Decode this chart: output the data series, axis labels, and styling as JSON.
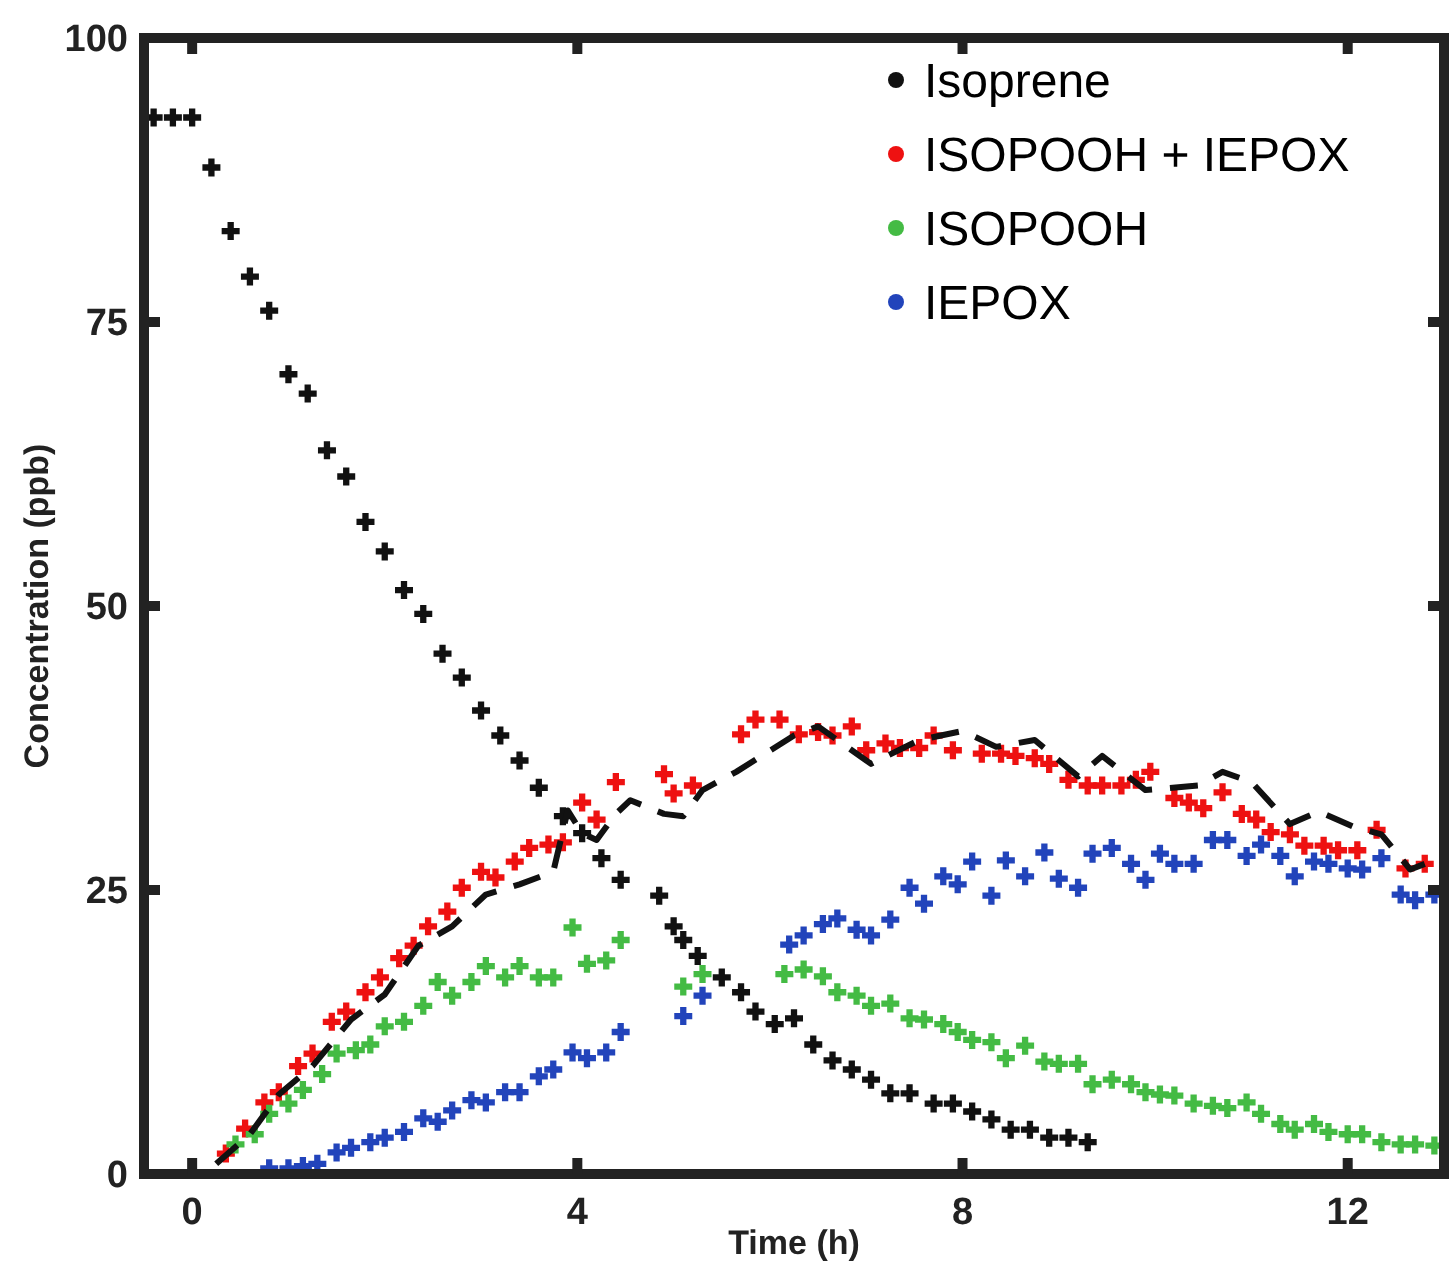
{
  "chart_data": {
    "type": "scatter",
    "xlabel": "Time (h)",
    "ylabel": "Concentration (ppb)",
    "xlim": [
      -0.5,
      13
    ],
    "xticks": [
      0,
      4,
      8,
      12
    ],
    "ylim": [
      0,
      100
    ],
    "yticks": [
      0,
      25,
      50,
      75,
      100
    ],
    "marker": "cross",
    "line_style": "dashed",
    "legend": "top right",
    "grid": false,
    "series": [
      {
        "name": "Isoprene",
        "color": "#111111",
        "x": [
          -0.4,
          -0.2,
          0,
          0.2,
          0.4,
          0.6,
          0.8,
          1.0,
          1.2,
          1.4,
          1.6,
          1.8,
          2.0,
          2.2,
          2.4,
          2.6,
          2.8,
          3.0,
          3.2,
          3.4,
          3.6,
          3.85,
          4.05,
          4.25,
          4.45,
          4.85,
          5.0,
          5.1,
          5.25,
          5.5,
          5.7,
          5.85,
          6.05,
          6.25,
          6.45,
          6.65,
          6.85,
          7.05,
          7.25,
          7.45,
          7.7,
          7.9,
          8.1,
          8.3,
          8.5,
          8.7,
          8.9,
          9.1,
          9.3
        ],
        "values": [
          93,
          93,
          93,
          88.6,
          83,
          79,
          76,
          70.4,
          68.7,
          63.7,
          61.4,
          57.4,
          54.8,
          51.4,
          49.3,
          45.8,
          43.7,
          40.8,
          38.6,
          36.4,
          34,
          31.5,
          30,
          27.8,
          25.9,
          24.5,
          21.8,
          20.6,
          19.2,
          17.3,
          16,
          14.3,
          13.2,
          13.7,
          11.4,
          10,
          9.2,
          8.3,
          7.1,
          7.1,
          6.2,
          6.2,
          5.5,
          4.8,
          3.9,
          3.9,
          3.2,
          3.2,
          2.8
        ]
      },
      {
        "name": "ISOPOOH + IEPOX",
        "color": "#ee1111",
        "x": [
          0.35,
          0.55,
          0.75,
          0.9,
          1.1,
          1.25,
          1.45,
          1.6,
          1.8,
          1.95,
          2.15,
          2.3,
          2.45,
          2.65,
          2.8,
          3.0,
          3.15,
          3.35,
          3.5,
          3.7,
          3.85,
          4.05,
          4.2,
          4.4,
          4.9,
          5.0,
          5.2,
          5.7,
          5.85,
          6.1,
          6.3,
          6.5,
          6.65,
          6.85,
          7.0,
          7.2,
          7.35,
          7.55,
          7.7,
          7.9,
          8.2,
          8.4,
          8.55,
          8.75,
          8.9,
          9.1,
          9.3,
          9.45,
          9.65,
          9.8,
          9.95,
          10.2,
          10.35,
          10.5,
          10.7,
          10.9,
          11.05,
          11.2,
          11.4,
          11.55,
          11.75,
          11.9,
          12.1,
          12.3,
          12.6,
          12.8
        ],
        "values": [
          1.8,
          4,
          6.3,
          7.2,
          9.5,
          10.6,
          13.4,
          14.3,
          16,
          17.3,
          19,
          20.1,
          21.8,
          23.1,
          25.2,
          26.6,
          26.1,
          27.5,
          28.7,
          29,
          29.2,
          32.7,
          31.2,
          34.5,
          35.2,
          33.5,
          34.2,
          38.7,
          40,
          40,
          38.7,
          38.9,
          38.6,
          39.4,
          37.3,
          37.9,
          37.5,
          37.5,
          38.6,
          37.3,
          37,
          37,
          36.8,
          36.6,
          36.1,
          34.7,
          34.2,
          34.2,
          34.2,
          34.7,
          35.4,
          33.1,
          32.7,
          32.2,
          33.6,
          31.7,
          31.2,
          30.1,
          29.9,
          28.9,
          28.9,
          28.5,
          28.5,
          30.3,
          26.9,
          27.3
        ]
      },
      {
        "name": "ISOPOOH",
        "color": "#44bb44",
        "x": [
          0.45,
          0.65,
          0.8,
          1.0,
          1.15,
          1.35,
          1.5,
          1.7,
          1.85,
          2.0,
          2.2,
          2.4,
          2.55,
          2.7,
          2.9,
          3.05,
          3.25,
          3.4,
          3.6,
          3.75,
          3.95,
          4.1,
          4.3,
          4.45,
          5.1,
          5.3,
          6.15,
          6.35,
          6.55,
          6.7,
          6.9,
          7.05,
          7.25,
          7.45,
          7.6,
          7.8,
          7.95,
          8.1,
          8.3,
          8.45,
          8.65,
          8.85,
          9.0,
          9.2,
          9.35,
          9.55,
          9.75,
          9.9,
          10.05,
          10.2,
          10.4,
          10.6,
          10.75,
          10.95,
          11.1,
          11.3,
          11.45,
          11.65,
          11.8,
          12.0,
          12.15,
          12.35,
          12.55,
          12.7,
          12.9
        ],
        "values": [
          2.6,
          3.5,
          5.3,
          6.2,
          7.4,
          8.8,
          10.6,
          10.9,
          11.4,
          13,
          13.4,
          14.8,
          16.9,
          15.7,
          16.9,
          18.3,
          17.3,
          18.3,
          17.3,
          17.3,
          21.7,
          18.5,
          18.8,
          20.6,
          16.5,
          17.6,
          17.6,
          18,
          17.4,
          16,
          15.7,
          14.8,
          15,
          13.7,
          13.6,
          13.2,
          12.5,
          11.8,
          11.6,
          10.2,
          11.3,
          9.9,
          9.7,
          9.7,
          7.9,
          8.3,
          7.9,
          7.2,
          7,
          6.9,
          6.2,
          6,
          5.8,
          6.3,
          5.3,
          4.4,
          3.9,
          4.4,
          3.7,
          3.5,
          3.5,
          2.8,
          2.6,
          2.6,
          2.5
        ]
      },
      {
        "name": "IEPOX",
        "color": "#2244bb",
        "x": [
          0.8,
          1.0,
          1.15,
          1.3,
          1.5,
          1.65,
          1.85,
          2.0,
          2.2,
          2.4,
          2.55,
          2.7,
          2.9,
          3.05,
          3.25,
          3.4,
          3.6,
          3.75,
          3.95,
          4.1,
          4.3,
          4.45,
          5.1,
          5.3,
          6.2,
          6.35,
          6.55,
          6.7,
          6.9,
          7.05,
          7.25,
          7.45,
          7.6,
          7.8,
          7.95,
          8.1,
          8.3,
          8.45,
          8.65,
          8.85,
          9.0,
          9.2,
          9.35,
          9.55,
          9.75,
          9.9,
          10.05,
          10.2,
          10.4,
          10.6,
          10.75,
          10.95,
          11.1,
          11.3,
          11.45,
          11.65,
          11.8,
          12.0,
          12.15,
          12.35,
          12.55,
          12.7,
          12.9
        ],
        "values": [
          0.5,
          0.5,
          0.7,
          0.9,
          1.9,
          2.3,
          2.8,
          3.2,
          3.7,
          4.9,
          4.6,
          5.6,
          6.5,
          6.3,
          7.2,
          7.2,
          8.6,
          9.2,
          10.7,
          10.2,
          10.7,
          12.5,
          13.9,
          15.7,
          20.2,
          21,
          22,
          22.5,
          21.5,
          21,
          22.4,
          25.2,
          23.8,
          26.2,
          25.5,
          27.5,
          24.5,
          27.6,
          26.2,
          28.3,
          26,
          25.2,
          28.2,
          28.7,
          27.3,
          25.9,
          28.2,
          27.3,
          27.3,
          29.4,
          29.4,
          28,
          29,
          28,
          26.2,
          27.5,
          27.3,
          26.9,
          26.8,
          27.8,
          24.6,
          24.1,
          24.6
        ]
      },
      {
        "type": "line",
        "marker": "none",
        "color": "#111111",
        "x": [
          0.25,
          0.6,
          0.9,
          1.25,
          1.65,
          2.0,
          2.35,
          2.7,
          3.05,
          3.4,
          3.75,
          3.9,
          4.05,
          4.2,
          4.4,
          4.55,
          4.9,
          5.1,
          5.3,
          5.65,
          5.95,
          6.25,
          6.5,
          7.05,
          7.55,
          8.0,
          8.35,
          8.75,
          9.2,
          9.45,
          9.9,
          10.45,
          10.7,
          11.0,
          11.4,
          11.7,
          12.05,
          12.35,
          12.65,
          12.8
        ],
        "values": [
          0.9,
          3.5,
          7,
          9.5,
          13.6,
          15.8,
          20.1,
          21.8,
          24.6,
          25.5,
          26.6,
          32,
          30,
          29.4,
          31.7,
          32.9,
          31.7,
          31.5,
          33.8,
          35.4,
          37,
          38.6,
          39.4,
          36.1,
          38.2,
          39,
          37.6,
          38.2,
          35,
          36.8,
          33.8,
          34.2,
          35.4,
          34.5,
          30.8,
          31.9,
          30.6,
          29.9,
          26.8,
          27.3
        ]
      }
    ]
  }
}
